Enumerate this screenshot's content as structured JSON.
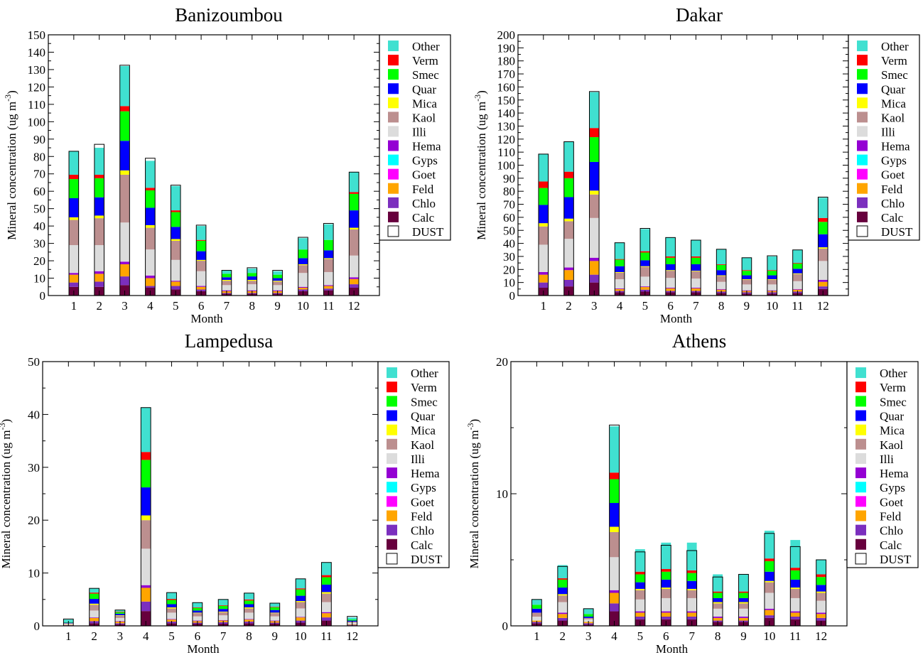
{
  "chart_data": [
    {
      "type": "bar",
      "stacked": true,
      "title": "Banizoumbou",
      "xlabel": "Month",
      "ylabel": "Mineral concentration (ug m",
      "ylabel_sup": "-3",
      "ylabel_close": ")",
      "categories": [
        "1",
        "2",
        "3",
        "4",
        "5",
        "6",
        "7",
        "8",
        "9",
        "10",
        "11",
        "12"
      ],
      "ylim": [
        0,
        150
      ],
      "yticks": [
        0,
        10,
        20,
        30,
        40,
        50,
        60,
        70,
        80,
        90,
        100,
        110,
        120,
        130,
        140,
        150
      ],
      "ytick_labels": [
        "0",
        "10",
        "20",
        "30",
        "40",
        "50",
        "60",
        "70",
        "80",
        "90",
        "100",
        "110",
        "120",
        "130",
        "140",
        "150"
      ],
      "legend": [
        "Other",
        "Verm",
        "Smec",
        "Quar",
        "Mica",
        "Kaol",
        "Illi",
        "Hema",
        "Gyps",
        "Goet",
        "Feld",
        "Chlo",
        "Calc",
        "DUST"
      ],
      "dust": [
        83,
        87,
        132.5,
        79,
        63.5,
        40.5,
        14.5,
        16,
        14.5,
        33.5,
        41.5,
        71
      ],
      "series": [
        {
          "name": "Calc",
          "values": [
            5,
            5,
            6,
            4.5,
            3.5,
            2.5,
            1,
            1,
            1,
            2.5,
            3,
            4.5
          ]
        },
        {
          "name": "Chlo",
          "values": [
            2.5,
            3,
            5,
            1,
            2,
            1,
            0.5,
            0.5,
            0.5,
            1,
            1,
            2
          ]
        },
        {
          "name": "Feld",
          "values": [
            4.5,
            4.5,
            7,
            4.5,
            2.5,
            1.5,
            1,
            1,
            1,
            1,
            1.5,
            3
          ]
        },
        {
          "name": "Goet",
          "values": [
            0,
            0,
            0,
            0,
            0,
            0,
            0,
            0,
            0,
            0,
            0,
            0
          ]
        },
        {
          "name": "Gyps",
          "values": [
            0,
            0,
            0,
            0,
            0,
            0,
            0,
            0,
            0,
            0,
            0,
            0
          ]
        },
        {
          "name": "Hema",
          "values": [
            1,
            1.5,
            1.5,
            1.5,
            0.5,
            0.5,
            0.5,
            0.5,
            0.5,
            0.5,
            0.5,
            1
          ]
        },
        {
          "name": "Illi",
          "values": [
            16,
            15,
            22.5,
            15,
            12,
            8.5,
            3,
            3.5,
            3,
            8,
            7.5,
            12.5
          ]
        },
        {
          "name": "Kaol",
          "values": [
            14.5,
            15.5,
            27.5,
            12.5,
            11,
            6,
            2.5,
            2,
            2,
            4.5,
            7.5,
            15
          ]
        },
        {
          "name": "Mica",
          "values": [
            1.5,
            1.5,
            2.5,
            1.5,
            1,
            0.5,
            0.5,
            0.5,
            0.5,
            0.5,
            0.5,
            1
          ]
        },
        {
          "name": "Quar",
          "values": [
            11,
            10.5,
            17,
            10,
            7,
            5,
            1.5,
            2,
            1.5,
            3.5,
            4.5,
            10
          ]
        },
        {
          "name": "Smec",
          "values": [
            11,
            11,
            17,
            10,
            8.5,
            6,
            2,
            2,
            2,
            5,
            6,
            9.5
          ]
        },
        {
          "name": "Verm",
          "values": [
            2.5,
            2,
            3,
            1.5,
            1,
            0.5,
            0,
            0,
            0,
            0,
            0,
            1
          ]
        },
        {
          "name": "Other",
          "values": [
            13.5,
            15.5,
            23,
            15.5,
            14,
            8,
            2,
            2.5,
            2,
            6.5,
            9,
            11.5
          ]
        }
      ]
    },
    {
      "type": "bar",
      "stacked": true,
      "title": "Dakar",
      "xlabel": "Month",
      "ylabel": "Mineral concentration (ug m",
      "ylabel_sup": "-3",
      "ylabel_close": ")",
      "categories": [
        "1",
        "2",
        "3",
        "4",
        "5",
        "6",
        "7",
        "8",
        "9",
        "10",
        "11",
        "12"
      ],
      "ylim": [
        0,
        200
      ],
      "yticks": [
        0,
        10,
        20,
        30,
        40,
        50,
        60,
        70,
        80,
        90,
        100,
        110,
        120,
        130,
        140,
        150,
        160,
        170,
        180,
        190,
        200
      ],
      "ytick_labels": [
        "0",
        "10",
        "20",
        "30",
        "40",
        "50",
        "60",
        "70",
        "80",
        "90",
        "100",
        "110",
        "120",
        "130",
        "140",
        "150",
        "160",
        "170",
        "180",
        "190",
        "200"
      ],
      "legend": [
        "Other",
        "Verm",
        "Smec",
        "Quar",
        "Mica",
        "Kaol",
        "Illi",
        "Hema",
        "Gyps",
        "Goet",
        "Feld",
        "Chlo",
        "Calc",
        "DUST"
      ],
      "dust": [
        108.5,
        118,
        156.5,
        40.5,
        51.5,
        44.5,
        42.5,
        35.5,
        29,
        30.5,
        35,
        75.5
      ],
      "series": [
        {
          "name": "Calc",
          "values": [
            6,
            7,
            10,
            2.5,
            3,
            2.5,
            2.5,
            2,
            1.5,
            1.5,
            2,
            5
          ]
        },
        {
          "name": "Chlo",
          "values": [
            4,
            5,
            6,
            1,
            1.5,
            1,
            1,
            1,
            1,
            1,
            1,
            2
          ]
        },
        {
          "name": "Feld",
          "values": [
            6,
            7.5,
            10.5,
            1.5,
            2,
            2,
            2,
            1.5,
            1,
            1,
            1.5,
            3.5
          ]
        },
        {
          "name": "Goet",
          "values": [
            0,
            0,
            0,
            0,
            0,
            0,
            0,
            0,
            0,
            0,
            0,
            0
          ]
        },
        {
          "name": "Gyps",
          "values": [
            0,
            0,
            0,
            0,
            0,
            0,
            0,
            0,
            0,
            0,
            0,
            0
          ]
        },
        {
          "name": "Hema",
          "values": [
            2,
            2,
            2.5,
            0.5,
            0.5,
            0.5,
            0.5,
            0.5,
            0.5,
            0.5,
            0.5,
            1.5
          ]
        },
        {
          "name": "Illi",
          "values": [
            21,
            22,
            30.5,
            7,
            7.5,
            7.5,
            7,
            5.5,
            4.5,
            4.5,
            6,
            14.5
          ]
        },
        {
          "name": "Kaol",
          "values": [
            14,
            13.5,
            18,
            5,
            7.5,
            5.5,
            5.5,
            4.5,
            3.5,
            3.5,
            5.5,
            9.5
          ]
        },
        {
          "name": "Mica",
          "values": [
            2.5,
            2,
            3,
            0.5,
            0.5,
            0.5,
            0.5,
            0.5,
            0.5,
            0.5,
            0.5,
            1
          ]
        },
        {
          "name": "Quar",
          "values": [
            14,
            16.5,
            22,
            4.5,
            4.5,
            4.5,
            5,
            4,
            3,
            3,
            3.5,
            10
          ]
        },
        {
          "name": "Smec",
          "values": [
            13,
            14.5,
            19,
            5,
            6,
            5,
            5,
            4,
            3.5,
            3.5,
            4,
            9.5
          ]
        },
        {
          "name": "Verm",
          "values": [
            5,
            5,
            7,
            0.5,
            1,
            1,
            1,
            0.5,
            0.5,
            0.5,
            0.5,
            3
          ]
        },
        {
          "name": "Other",
          "values": [
            21,
            23,
            27.5,
            12.5,
            17,
            14.5,
            12.5,
            11.5,
            9.5,
            10.5,
            10,
            15.5
          ]
        }
      ]
    },
    {
      "type": "bar",
      "stacked": true,
      "title": "Lampedusa",
      "xlabel": "Month",
      "ylabel": "Mineral concentration (ug m",
      "ylabel_sup": "-3",
      "ylabel_close": ")",
      "categories": [
        "1",
        "2",
        "3",
        "4",
        "5",
        "6",
        "7",
        "8",
        "9",
        "10",
        "11",
        "12"
      ],
      "ylim": [
        0,
        50
      ],
      "yticks": [
        0,
        10,
        20,
        30,
        40,
        50
      ],
      "ytick_labels": [
        "0",
        "10",
        "20",
        "30",
        "40",
        "50"
      ],
      "legend": [
        "Other",
        "Verm",
        "Smec",
        "Quar",
        "Mica",
        "Kaol",
        "Illi",
        "Hema",
        "Gyps",
        "Goet",
        "Feld",
        "Chlo",
        "Calc",
        "DUST"
      ],
      "dust": [
        1.3,
        7.1,
        3,
        41.3,
        6.3,
        4.4,
        5,
        6.2,
        4.3,
        8.9,
        12,
        1.8
      ],
      "series": [
        {
          "name": "Calc",
          "values": [
            0.1,
            0.5,
            0.3,
            2.8,
            0.5,
            0.4,
            0.4,
            0.5,
            0.4,
            0.6,
            1,
            0.1
          ]
        },
        {
          "name": "Chlo",
          "values": [
            0.05,
            0.4,
            0.2,
            1.8,
            0.3,
            0.2,
            0.3,
            0.3,
            0.2,
            0.4,
            0.6,
            0.1
          ]
        },
        {
          "name": "Feld",
          "values": [
            0.05,
            0.6,
            0.3,
            2.6,
            0.4,
            0.3,
            0.3,
            0.4,
            0.3,
            0.6,
            0.8,
            0.1
          ]
        },
        {
          "name": "Goet",
          "values": [
            0,
            0,
            0,
            0,
            0,
            0,
            0,
            0,
            0,
            0,
            0,
            0
          ]
        },
        {
          "name": "Gyps",
          "values": [
            0,
            0,
            0,
            0,
            0,
            0,
            0,
            0,
            0,
            0,
            0,
            0
          ]
        },
        {
          "name": "Hema",
          "values": [
            0,
            0.1,
            0.1,
            0.5,
            0.1,
            0.1,
            0.1,
            0.1,
            0.1,
            0.1,
            0.2,
            0
          ]
        },
        {
          "name": "Illi",
          "values": [
            0.2,
            1.3,
            0.6,
            6.9,
            1.2,
            0.8,
            0.9,
            1.2,
            0.8,
            1.6,
            1.9,
            0.3
          ]
        },
        {
          "name": "Kaol",
          "values": [
            0.1,
            1.1,
            0.4,
            5.4,
            0.8,
            0.6,
            0.6,
            0.8,
            0.6,
            1.2,
            1.6,
            0.2
          ]
        },
        {
          "name": "Mica",
          "values": [
            0,
            0.2,
            0.1,
            0.9,
            0.2,
            0.1,
            0.1,
            0.2,
            0.1,
            0.2,
            0.3,
            0
          ]
        },
        {
          "name": "Quar",
          "values": [
            0.1,
            0.9,
            0.3,
            5.3,
            0.6,
            0.4,
            0.5,
            0.6,
            0.5,
            1,
            1.4,
            0.2
          ]
        },
        {
          "name": "Smec",
          "values": [
            0.1,
            1,
            0.3,
            5.2,
            0.8,
            0.5,
            0.6,
            0.7,
            0.5,
            1.2,
            1.4,
            0.2
          ]
        },
        {
          "name": "Verm",
          "values": [
            0,
            0.2,
            0.1,
            1.5,
            0.2,
            0.1,
            0.1,
            0.2,
            0.1,
            0.2,
            0.4,
            0
          ]
        },
        {
          "name": "Other",
          "values": [
            0.5,
            0.8,
            0.3,
            8.4,
            1.2,
            0.9,
            1.1,
            1.2,
            0.7,
            1.8,
            2.4,
            0.4
          ]
        }
      ]
    },
    {
      "type": "bar",
      "stacked": true,
      "title": "Athens",
      "xlabel": "Month",
      "ylabel": "Mineral concentration (ug m",
      "ylabel_sup": "-3",
      "ylabel_close": ")",
      "categories": [
        "1",
        "2",
        "3",
        "4",
        "5",
        "6",
        "7",
        "8",
        "9",
        "10",
        "11",
        "12"
      ],
      "ylim": [
        0,
        20
      ],
      "yticks": [
        0,
        10,
        20
      ],
      "ytick_labels": [
        "0",
        "10",
        "20"
      ],
      "legend": [
        "Other",
        "Verm",
        "Smec",
        "Quar",
        "Mica",
        "Kaol",
        "Illi",
        "Hema",
        "Gyps",
        "Goet",
        "Feld",
        "Chlo",
        "Calc",
        "DUST"
      ],
      "dust": [
        2,
        4.5,
        1.3,
        15.2,
        5.6,
        6.1,
        5.7,
        3.7,
        3.9,
        7,
        6,
        5
      ],
      "series": [
        {
          "name": "Calc",
          "values": [
            0.2,
            0.4,
            0.1,
            1.1,
            0.5,
            0.5,
            0.5,
            0.3,
            0.3,
            0.6,
            0.5,
            0.4
          ]
        },
        {
          "name": "Chlo",
          "values": [
            0.1,
            0.2,
            0.1,
            0.6,
            0.2,
            0.2,
            0.2,
            0.1,
            0.1,
            0.2,
            0.2,
            0.2
          ]
        },
        {
          "name": "Feld",
          "values": [
            0.1,
            0.3,
            0.1,
            0.8,
            0.3,
            0.3,
            0.3,
            0.2,
            0.2,
            0.4,
            0.3,
            0.3
          ]
        },
        {
          "name": "Goet",
          "values": [
            0,
            0,
            0,
            0,
            0,
            0,
            0,
            0,
            0,
            0,
            0,
            0
          ]
        },
        {
          "name": "Gyps",
          "values": [
            0,
            0,
            0,
            0,
            0,
            0,
            0,
            0,
            0,
            0,
            0,
            0
          ]
        },
        {
          "name": "Hema",
          "values": [
            0,
            0.1,
            0,
            0.2,
            0.1,
            0.1,
            0.1,
            0.1,
            0.1,
            0.1,
            0.1,
            0.1
          ]
        },
        {
          "name": "Illi",
          "values": [
            0.3,
            0.8,
            0.2,
            2.5,
            0.9,
            1,
            1,
            0.6,
            0.6,
            1.2,
            1,
            0.9
          ]
        },
        {
          "name": "Kaol",
          "values": [
            0.3,
            0.5,
            0.1,
            1.9,
            0.7,
            0.7,
            0.6,
            0.4,
            0.4,
            0.8,
            0.7,
            0.6
          ]
        },
        {
          "name": "Mica",
          "values": [
            0,
            0.1,
            0,
            0.4,
            0.1,
            0.1,
            0.1,
            0.1,
            0.1,
            0.1,
            0.1,
            0.1
          ]
        },
        {
          "name": "Quar",
          "values": [
            0.3,
            0.5,
            0.1,
            1.8,
            0.5,
            0.6,
            0.6,
            0.3,
            0.3,
            0.7,
            0.6,
            0.5
          ]
        },
        {
          "name": "Smec",
          "values": [
            0.3,
            0.6,
            0.2,
            1.8,
            0.6,
            0.6,
            0.6,
            0.4,
            0.4,
            0.8,
            0.7,
            0.6
          ]
        },
        {
          "name": "Verm",
          "values": [
            0,
            0.1,
            0,
            0.5,
            0.2,
            0.2,
            0.2,
            0.1,
            0.1,
            0.2,
            0.2,
            0.2
          ]
        },
        {
          "name": "Other",
          "values": [
            0.4,
            1,
            0.4,
            3.5,
            1.7,
            2,
            2.1,
            1.3,
            1.3,
            2.1,
            2.1,
            1.1
          ]
        }
      ]
    }
  ],
  "colors": {
    "Other": "#40E0D0",
    "Verm": "#FF0000",
    "Smec": "#00FF00",
    "Quar": "#0000FF",
    "Mica": "#FFFF00",
    "Kaol": "#BC8F8F",
    "Illi": "#DCDCDC",
    "Hema": "#9400D3",
    "Gyps": "#00FFFF",
    "Goet": "#FF00FF",
    "Feld": "#FFA500",
    "Chlo": "#7B2FBE",
    "Calc": "#67003D",
    "DUST": "#FFFFFF"
  }
}
